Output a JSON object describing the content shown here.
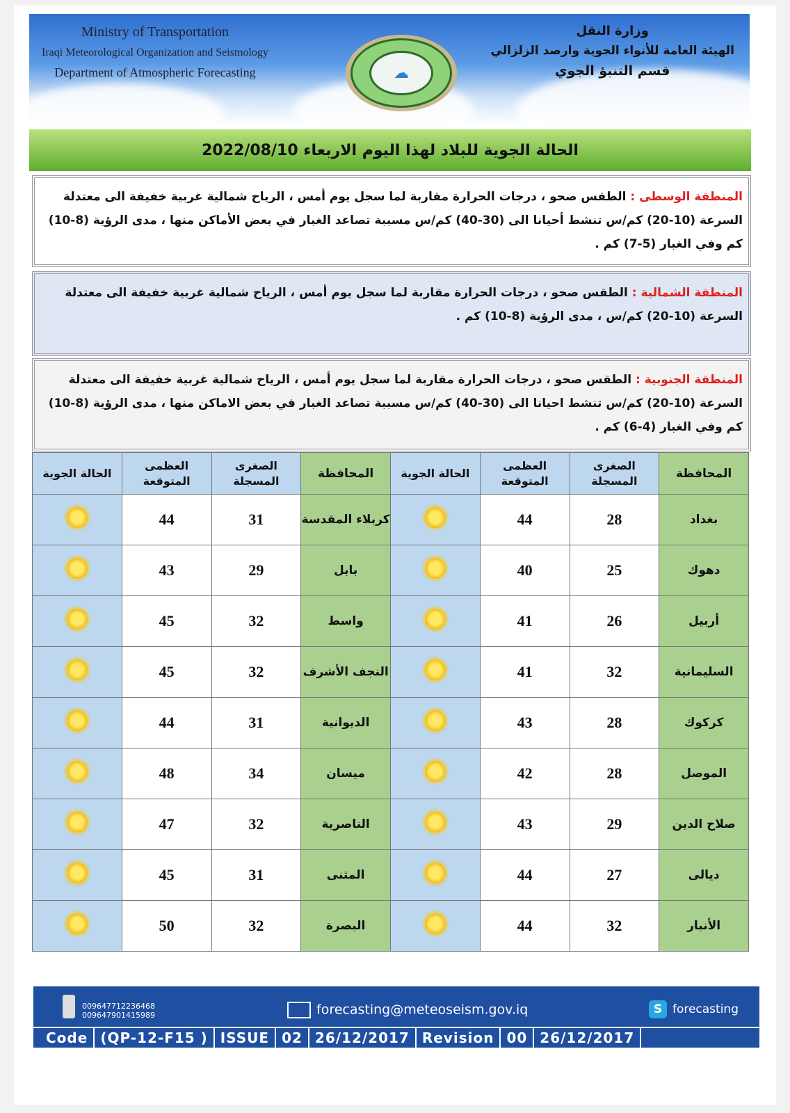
{
  "header": {
    "en": [
      "Ministry of Transportation",
      "Iraqi Meteorological Organization and Seismology",
      "Department of Atmospheric Forecasting"
    ],
    "ar": [
      "وزارة النقل",
      "الهيئة العامة للأنواء الجوية وارصد الزلزالي",
      "قسم التنبؤ الجوي"
    ]
  },
  "title": "الحالة الجوية للبلاد لهذا اليوم الاربعاء 2022/08/10",
  "regions": [
    {
      "label": "المنطقة الوسطى :",
      "text": " الطقس صحو ، درجات الحرارة مقاربة لما سجل يوم أمس ، الرياح شمالية غربية خفيفة الى معتدلة السرعة (10-20) كم/س تنشط أحيانا الى (30-40) كم/س مسببة تصاعد الغبار في بعض الأماكن منها ، مدى الرؤية (8-10) كم وفي الغبار (5-7) كم ."
    },
    {
      "label": "المنطقة الشمالية :",
      "text": " الطقس صحو ، درجات الحرارة مقاربة لما سجل يوم أمس ، الرياح شمالية غربية خفيفة الى معتدلة السرعة (10-20) كم/س ، مدى الرؤية (8-10) كم ."
    },
    {
      "label": "المنطقة الجنوبية :",
      "text": " الطقس صحو ، درجات الحرارة مقاربة لما سجل يوم أمس ، الرياح شمالية غربية خفيفة الى معتدلة السرعة (10-20) كم/س تنشط احيانا الى (30-40) كم/س مسببة تصاعد الغبار في بعض الاماكن منها ، مدى الرؤية (8-10) كم وفي الغبار (4-6) كم ."
    }
  ],
  "table": {
    "headers": [
      "المحافظة",
      "الصغرى المسجلة",
      "العظمى المتوقعة",
      "الحالة الجوية",
      "المحافظة",
      "الصغرى المسجلة",
      "العظمى المتوقعة",
      "الحالة الجوية"
    ],
    "weather_icon": "sun-icon",
    "rows": [
      [
        [
          "بغداد",
          "28",
          "44"
        ],
        [
          "كربلاء المقدسة",
          "31",
          "44"
        ]
      ],
      [
        [
          "دهوك",
          "25",
          "40"
        ],
        [
          "بابل",
          "29",
          "43"
        ]
      ],
      [
        [
          "أربيل",
          "26",
          "41"
        ],
        [
          "واسط",
          "32",
          "45"
        ]
      ],
      [
        [
          "السليمانية",
          "32",
          "41"
        ],
        [
          "النجف الأشرف",
          "32",
          "45"
        ]
      ],
      [
        [
          "كركوك",
          "28",
          "43"
        ],
        [
          "الديوانية",
          "31",
          "44"
        ]
      ],
      [
        [
          "الموصل",
          "28",
          "42"
        ],
        [
          "ميسان",
          "34",
          "48"
        ]
      ],
      [
        [
          "صلاح الدين",
          "29",
          "43"
        ],
        [
          "الناصرية",
          "32",
          "47"
        ]
      ],
      [
        [
          "ديالى",
          "27",
          "44"
        ],
        [
          "المثنى",
          "31",
          "45"
        ]
      ],
      [
        [
          "الأنبار",
          "32",
          "44"
        ],
        [
          "البصرة",
          "32",
          "50"
        ]
      ]
    ]
  },
  "footer": {
    "phones": [
      "009647712236468",
      "009647901415989"
    ],
    "email": "forecasting@meteoseism.gov.iq",
    "skype": "forecasting",
    "codes": [
      "Code",
      "(QP-12-F15 )",
      "ISSUE",
      "02",
      "26/12/2017",
      "Revision",
      "00",
      "26/12/2017"
    ]
  }
}
